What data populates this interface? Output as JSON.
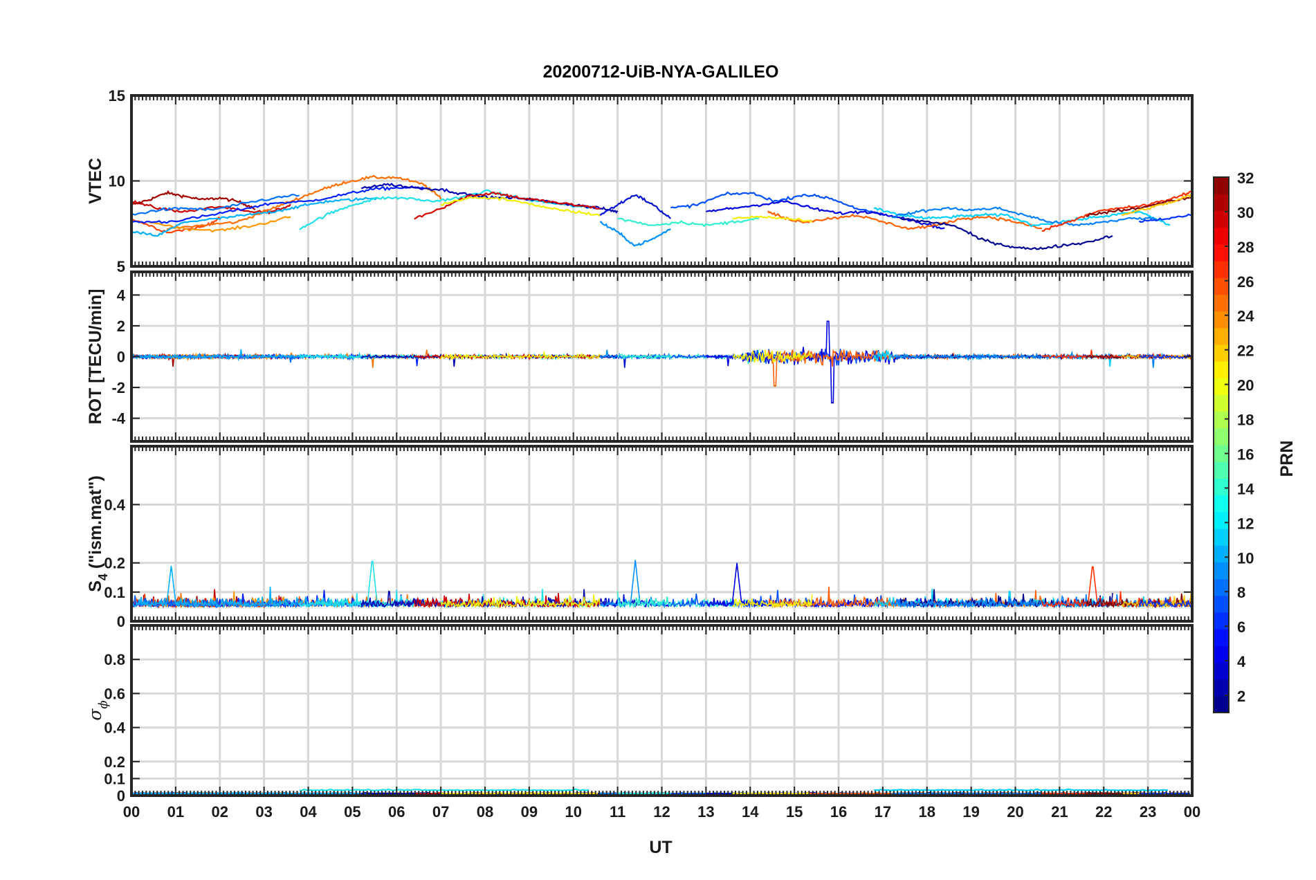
{
  "chart_data": {
    "type": "line",
    "title": "20200712-UiB-NYA-GALILEO",
    "xlabel": "UT",
    "x_ticks": [
      "00",
      "01",
      "02",
      "03",
      "04",
      "05",
      "06",
      "07",
      "08",
      "09",
      "10",
      "11",
      "12",
      "13",
      "14",
      "15",
      "16",
      "17",
      "18",
      "19",
      "20",
      "21",
      "22",
      "23",
      "00"
    ],
    "xlim_hours": [
      0,
      24
    ],
    "grid": true,
    "colorbar": {
      "label": "PRN",
      "colormap": "jet",
      "range": [
        1,
        32
      ],
      "ticks": [
        "2",
        "4",
        "6",
        "8",
        "10",
        "12",
        "14",
        "16",
        "18",
        "20",
        "22",
        "24",
        "26",
        "28",
        "30",
        "32"
      ]
    },
    "panels": [
      {
        "id": "vtec",
        "ylabel": "VTEC",
        "ylim": [
          5,
          15
        ],
        "yticks": [
          "5",
          "10",
          "15"
        ],
        "series": [
          {
            "prn": 31,
            "color": "#a00000",
            "x": [
              0,
              0.4,
              0.8,
              1.2,
              1.6,
              2.0,
              2.4,
              2.8
            ],
            "y": [
              8.6,
              8.9,
              9.3,
              9.1,
              8.9,
              9.0,
              8.8,
              8.4
            ]
          },
          {
            "prn": 30,
            "color": "#c80000",
            "x": [
              0,
              0.6,
              1.2,
              2.0,
              2.6,
              3.2,
              3.6
            ],
            "y": [
              8.8,
              8.4,
              8.2,
              8.5,
              8.2,
              8.2,
              8.6
            ]
          },
          {
            "prn": 27,
            "color": "#ff4400",
            "x": [
              0,
              0.8,
              1.6,
              2.0
            ],
            "y": [
              7.8,
              7.0,
              7.3,
              7.8
            ]
          },
          {
            "prn": 25,
            "color": "#ff7000",
            "x": [
              0.8,
              1.6,
              2.4,
              3.0,
              3.6,
              4.2,
              4.8,
              5.4,
              6.0,
              6.6,
              7.0
            ],
            "y": [
              7.2,
              7.4,
              7.6,
              8.2,
              8.8,
              9.4,
              9.9,
              10.2,
              10.2,
              9.8,
              9.0
            ]
          },
          {
            "prn": 22,
            "color": "#ff9800",
            "x": [
              0.4,
              1.2,
              2.0,
              2.8,
              3.6
            ],
            "y": [
              7.6,
              7.2,
              7.1,
              7.4,
              7.9
            ]
          },
          {
            "prn": 5,
            "color": "#0020ff",
            "x": [
              0,
              0.8,
              1.6,
              2.4,
              3.2,
              4.0,
              4.8,
              5.4,
              6.0,
              6.6
            ],
            "y": [
              7.6,
              7.6,
              7.9,
              8.3,
              8.7,
              8.8,
              9.2,
              9.5,
              9.6,
              9.6
            ]
          },
          {
            "prn": 8,
            "color": "#0070ff",
            "x": [
              0,
              0.6,
              1.2,
              1.8,
              2.4,
              3.0,
              3.8
            ],
            "y": [
              8.0,
              8.3,
              8.4,
              8.3,
              8.6,
              8.9,
              9.2
            ]
          },
          {
            "prn": 11,
            "color": "#00b0ff",
            "x": [
              0,
              0.6,
              1.2,
              2.0,
              2.6,
              3.2,
              3.8,
              4.4,
              5.0,
              5.6
            ],
            "y": [
              7.0,
              6.8,
              7.6,
              7.8,
              8.0,
              8.2,
              8.5,
              8.8,
              8.9,
              9.0
            ]
          },
          {
            "prn": 13,
            "color": "#20e0e8",
            "x": [
              3.8,
              4.4,
              5.0,
              5.6,
              6.2,
              6.8,
              7.4,
              8.0,
              8.6,
              9.2,
              9.8,
              10.4
            ],
            "y": [
              7.2,
              8.0,
              8.6,
              9.0,
              9.0,
              8.8,
              9.0,
              9.4,
              9.1,
              8.8,
              8.6,
              8.4
            ]
          },
          {
            "prn": 2,
            "color": "#0000b0",
            "x": [
              5.2,
              5.8,
              6.4,
              7.0,
              7.6,
              8.2,
              8.8,
              9.4,
              10.0,
              10.6,
              11.0
            ],
            "y": [
              9.6,
              9.8,
              9.6,
              9.5,
              9.2,
              9.0,
              9.0,
              8.8,
              8.6,
              8.4,
              8.2
            ]
          },
          {
            "prn": 29,
            "color": "#d00000",
            "x": [
              6.4,
              7.0,
              7.6,
              8.2,
              8.8,
              9.4,
              10.0,
              10.6
            ],
            "y": [
              7.8,
              8.4,
              9.1,
              9.3,
              9.0,
              8.8,
              8.6,
              8.4
            ]
          },
          {
            "prn": 20,
            "color": "#f0f000",
            "x": [
              7.0,
              7.6,
              8.2,
              8.8,
              9.4,
              10.0,
              10.6
            ],
            "y": [
              8.6,
              9.0,
              9.0,
              8.8,
              8.4,
              8.2,
              8.0
            ]
          },
          {
            "prn": 3,
            "color": "#0010d0",
            "x": [
              10.6,
              11.0,
              11.4,
              11.8,
              12.2
            ],
            "y": [
              8.0,
              8.6,
              9.2,
              8.6,
              7.8
            ]
          },
          {
            "prn": 10,
            "color": "#0090ff",
            "x": [
              10.6,
              11.0,
              11.4,
              11.8,
              12.2
            ],
            "y": [
              7.6,
              7.0,
              6.2,
              6.6,
              7.2
            ]
          },
          {
            "prn": 14,
            "color": "#30f0d0",
            "x": [
              11.0,
              11.8,
              12.4,
              13.0,
              13.6,
              14.2
            ],
            "y": [
              7.8,
              7.4,
              7.6,
              7.4,
              7.6,
              7.8
            ]
          },
          {
            "prn": 7,
            "color": "#0050ff",
            "x": [
              12.2,
              12.8,
              13.4,
              14.0,
              14.6,
              15.2,
              15.8,
              16.4,
              17.0
            ],
            "y": [
              8.4,
              8.6,
              9.2,
              9.3,
              8.8,
              9.2,
              9.0,
              8.4,
              8.0
            ]
          },
          {
            "prn": 4,
            "color": "#0000e0",
            "x": [
              13.0,
              13.6,
              14.2,
              14.8,
              15.4,
              16.0,
              16.6,
              17.2,
              17.8,
              18.4
            ],
            "y": [
              8.2,
              8.4,
              8.6,
              8.8,
              8.4,
              8.1,
              8.2,
              8.0,
              7.6,
              7.2
            ]
          },
          {
            "prn": 24,
            "color": "#ff6000",
            "x": [
              14.4,
              14.8,
              15.2,
              15.8,
              16.4,
              17.0,
              17.6,
              18.2,
              18.8,
              19.4,
              20.0,
              20.6
            ],
            "y": [
              8.2,
              7.8,
              7.6,
              7.8,
              8.0,
              7.6,
              7.2,
              7.4,
              7.8,
              7.9,
              7.6,
              7.2
            ]
          },
          {
            "prn": 19,
            "color": "#f8f000",
            "x": [
              13.6,
              14.2,
              14.8,
              15.4
            ],
            "y": [
              7.8,
              7.9,
              7.8,
              7.6
            ]
          },
          {
            "prn": 12,
            "color": "#00d0ff",
            "x": [
              16.8,
              17.4,
              18.0,
              18.6,
              19.2,
              19.8,
              20.4,
              21.0,
              21.6,
              22.2,
              22.8,
              23.5
            ],
            "y": [
              8.4,
              8.0,
              7.8,
              7.9,
              8.0,
              8.0,
              7.4,
              7.6,
              7.8,
              8.0,
              8.2,
              7.4
            ]
          },
          {
            "prn": 1,
            "color": "#000090",
            "x": [
              17.4,
              18.0,
              18.6,
              19.2,
              19.8,
              20.4,
              21.0,
              21.6,
              22.2
            ],
            "y": [
              7.8,
              7.6,
              7.4,
              6.6,
              6.2,
              6.0,
              6.2,
              6.4,
              6.8
            ]
          },
          {
            "prn": 9,
            "color": "#0080ff",
            "x": [
              17.2,
              17.8,
              18.4,
              19.0,
              19.6,
              20.2,
              20.8,
              21.4,
              22.0,
              22.6,
              23.2
            ],
            "y": [
              7.9,
              8.2,
              8.4,
              8.3,
              8.4,
              8.0,
              7.6,
              7.4,
              7.6,
              7.8,
              7.8
            ]
          },
          {
            "prn": 26,
            "color": "#ff3000",
            "x": [
              20.6,
              21.2,
              21.8,
              22.4,
              23.0,
              23.6,
              24.0
            ],
            "y": [
              7.1,
              7.6,
              8.2,
              8.4,
              8.6,
              9.0,
              9.4
            ]
          },
          {
            "prn": 32,
            "color": "#800000",
            "x": [
              21.6,
              22.2,
              22.8,
              23.4,
              24.0
            ],
            "y": [
              8.0,
              8.2,
              8.4,
              8.8,
              9.0
            ]
          },
          {
            "prn": 21,
            "color": "#ffc800",
            "x": [
              22.4,
              23.0,
              23.6,
              24.0
            ],
            "y": [
              8.0,
              8.4,
              8.8,
              9.2
            ]
          },
          {
            "prn": 6,
            "color": "#0030ff",
            "x": [
              22.8,
              23.4,
              24.0
            ],
            "y": [
              7.6,
              7.8,
              8.0
            ]
          }
        ]
      },
      {
        "id": "rot",
        "ylabel": "ROT [TECU/min]",
        "ylim": [
          -5.5,
          5.5
        ],
        "yticks": [
          "-4",
          "-2",
          "0",
          "2",
          "4"
        ]
      },
      {
        "id": "s4",
        "ylabel": "S",
        "ylabel_sub": "4",
        "ylabel_suffix": " (\"ism.mat\")",
        "ylim": [
          0,
          0.6
        ],
        "yticks": [
          "0",
          "0.1",
          "0.2",
          "0.4"
        ]
      },
      {
        "id": "sigma",
        "ylabel": "σ",
        "ylabel_sub": "ϕ",
        "ylim": [
          0,
          1
        ],
        "yticks": [
          "0",
          "0.1",
          "0.2",
          "0.4",
          "0.6",
          "0.8"
        ]
      }
    ]
  }
}
